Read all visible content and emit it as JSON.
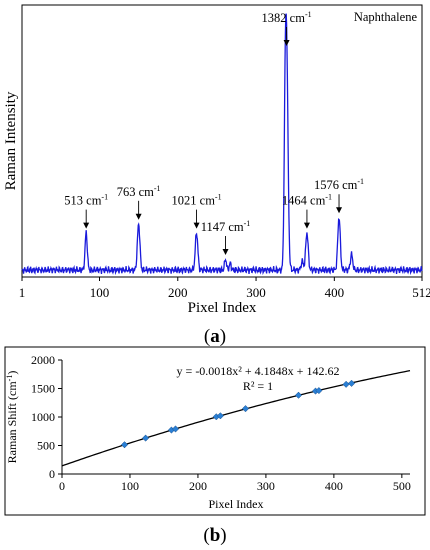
{
  "chart_data": [
    {
      "type": "line",
      "panel_label_prefix": "(",
      "panel_label": "a",
      "panel_label_suffix": ")",
      "xlabel": "Pixel Index",
      "ylabel": "Raman Intensity",
      "xlim": [
        1,
        512
      ],
      "x_ticks": [
        "1",
        "100",
        "200",
        "300",
        "400",
        "512"
      ],
      "series": [
        {
          "name": "Naphthalene",
          "color": "#1a1adb",
          "peaks": [
            {
              "x": 83,
              "rel": 0.17,
              "width": 1.4
            },
            {
              "x": 150,
              "rel": 0.21,
              "width": 1.6
            },
            {
              "x": 224,
              "rel": 0.17,
              "width": 1.6
            },
            {
              "x": 261,
              "rel": 0.05,
              "width": 1.2
            },
            {
              "x": 267,
              "rel": 0.03,
              "width": 1.2
            },
            {
              "x": 339,
              "rel": 1.0,
              "width": 1.8
            },
            {
              "x": 337,
              "rel": 0.4,
              "width": 1.3
            },
            {
              "x": 365,
              "rel": 0.17,
              "width": 1.6
            },
            {
              "x": 359,
              "rel": 0.04,
              "width": 1.4
            },
            {
              "x": 406,
              "rel": 0.24,
              "width": 1.6
            },
            {
              "x": 422,
              "rel": 0.07,
              "width": 1.5
            }
          ]
        }
      ],
      "annotations": [
        {
          "label": "513 cm",
          "sup": "-1",
          "x": 83,
          "rel": 0.17
        },
        {
          "label": "763 cm",
          "sup": "-1",
          "x": 150,
          "rel": 0.21
        },
        {
          "label": "1021 cm",
          "sup": "-1",
          "x": 224,
          "rel": 0.17
        },
        {
          "label": "1147 cm",
          "sup": "-1",
          "x": 261,
          "rel": 0.05
        },
        {
          "label": "1382 cm",
          "sup": "-1",
          "x": 339,
          "rel": 1.0
        },
        {
          "label": "1464 cm",
          "sup": "-1",
          "x": 365,
          "rel": 0.17
        },
        {
          "label": "1576 cm",
          "sup": "-1",
          "x": 406,
          "rel": 0.24
        }
      ],
      "legend": "Naphthalene"
    },
    {
      "type": "scatter",
      "panel_label_prefix": "(",
      "panel_label": "b",
      "panel_label_suffix": ")",
      "xlabel": "Pixel Index",
      "ylabel_main": "Raman Shift (cm",
      "ylabel_sup": "-1",
      "ylabel_end": ")",
      "xlim": [
        0,
        512
      ],
      "ylim": [
        0,
        2000
      ],
      "x_ticks": [
        0,
        100,
        200,
        300,
        400,
        500
      ],
      "y_ticks": [
        0,
        500,
        1000,
        1500,
        2000
      ],
      "points": [
        {
          "x": 92,
          "y": 513
        },
        {
          "x": 123,
          "y": 630
        },
        {
          "x": 161,
          "y": 771
        },
        {
          "x": 167,
          "y": 790
        },
        {
          "x": 227,
          "y": 1004
        },
        {
          "x": 233,
          "y": 1021
        },
        {
          "x": 270,
          "y": 1147
        },
        {
          "x": 348,
          "y": 1382
        },
        {
          "x": 373,
          "y": 1455
        },
        {
          "x": 378,
          "y": 1464
        },
        {
          "x": 418,
          "y": 1573
        },
        {
          "x": 426,
          "y": 1590
        }
      ],
      "fit": {
        "a": -0.0018,
        "b": 4.1848,
        "c": 142.62
      },
      "equation": "y = -0.0018x² + 4.1848x + 142.62",
      "r2": "R² = 1",
      "marker_color": "#2a7fd4"
    }
  ]
}
